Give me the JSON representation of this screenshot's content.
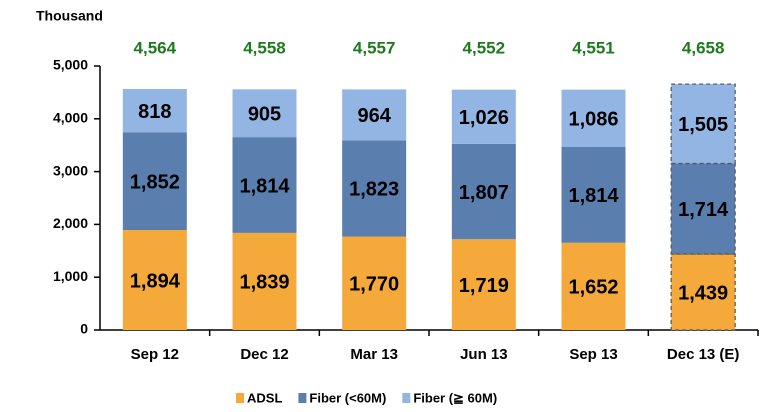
{
  "chart_data": {
    "type": "stacked_bar",
    "y_axis_label": "Thousand",
    "categories": [
      "Sep 12",
      "Dec 12",
      "Mar 13",
      "Jun 13",
      "Sep 13",
      "Dec 13 (E)"
    ],
    "series": [
      {
        "name": "ADSL",
        "color": "#f4a93a",
        "values": [
          1894,
          1839,
          1770,
          1719,
          1652,
          1439
        ],
        "value_labels": [
          "1,894",
          "1,839",
          "1,770",
          "1,719",
          "1,652",
          "1,439"
        ]
      },
      {
        "name": "Fiber (<60M)",
        "color": "#5a7eae",
        "values": [
          1852,
          1814,
          1823,
          1807,
          1814,
          1714
        ],
        "value_labels": [
          "1,852",
          "1,814",
          "1,823",
          "1,807",
          "1,814",
          "1,714"
        ]
      },
      {
        "name": "Fiber (≧ 60M)",
        "color": "#93b5e3",
        "values": [
          818,
          905,
          964,
          1026,
          1086,
          1505
        ],
        "value_labels": [
          "818",
          "905",
          "964",
          "1,026",
          "1,086",
          "1,505"
        ]
      }
    ],
    "totals": {
      "color": "#1f7a1f",
      "values": [
        4564,
        4558,
        4557,
        4552,
        4551,
        4658
      ],
      "value_labels": [
        "4,564",
        "4,558",
        "4,557",
        "4,552",
        "4,551",
        "4,658"
      ]
    },
    "ylim": [
      0,
      5000
    ],
    "yticks": [
      0,
      {
        "value": 1000,
        "label": "1,000"
      },
      {
        "value": 2000,
        "label": "2,000"
      },
      {
        "value": 3000,
        "label": "3,000"
      },
      {
        "value": 4000,
        "label": "4,000"
      },
      {
        "value": 5000,
        "label": "5,000"
      }
    ]
  }
}
